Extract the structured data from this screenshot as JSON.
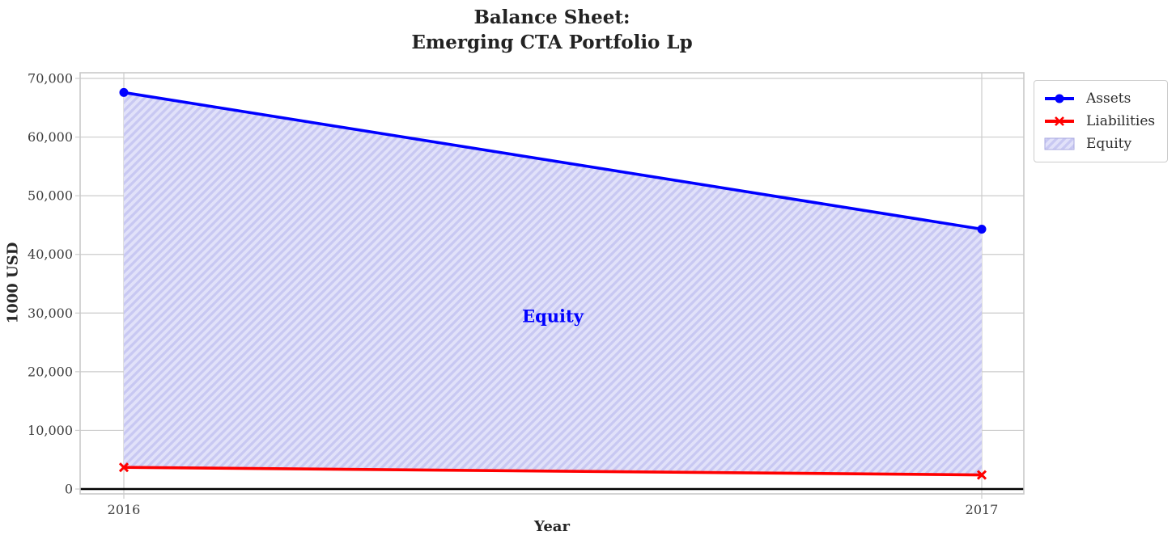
{
  "title": {
    "line1": "Balance Sheet:",
    "line2": "Emerging CTA Portfolio Lp"
  },
  "chart_data": {
    "type": "area",
    "title": "Balance Sheet:\nEmerging CTA Portfolio Lp",
    "xlabel": "Year",
    "ylabel": "1000 USD",
    "x": [
      2016,
      2017
    ],
    "x_tick_labels": [
      "2016",
      "2017"
    ],
    "ylim": [
      0,
      70000
    ],
    "y_ticks": [
      0,
      10000,
      20000,
      30000,
      40000,
      50000,
      60000,
      70000
    ],
    "y_tick_labels": [
      "0",
      "10,000",
      "20,000",
      "30,000",
      "40,000",
      "50,000",
      "60,000",
      "70,000"
    ],
    "grid": true,
    "zero_line": {
      "value": 0,
      "color": "#000000"
    },
    "series": [
      {
        "name": "Assets",
        "type": "line",
        "marker": "circle",
        "color": "#0000ff",
        "values": [
          67600,
          44300
        ]
      },
      {
        "name": "Liabilities",
        "type": "line",
        "marker": "x",
        "color": "#ff0000",
        "values": [
          3700,
          2400
        ]
      },
      {
        "name": "Equity",
        "type": "area_between",
        "between": [
          "Assets",
          "Liabilities"
        ],
        "fill_color": "#e1e1f9",
        "hatch_color": "#c8c8f2",
        "hatch": "//"
      }
    ],
    "annotation": {
      "text": "Equity",
      "color": "#0000ff",
      "x": 2016.5,
      "y": 29500
    },
    "legend_position": "outside-upper-right",
    "colors": {
      "grid": "#cccccc",
      "spine": "#c9c9c9",
      "tick_label": "#3c3c3c",
      "title": "#222222",
      "background": "#ffffff"
    }
  }
}
